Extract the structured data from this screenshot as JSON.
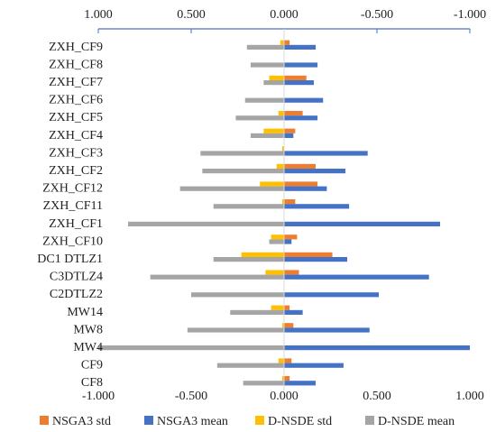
{
  "chart_data": {
    "type": "bar",
    "orientation": "horizontal",
    "categories": [
      "ZXH_CF9",
      "ZXH_CF8",
      "ZXH_CF7",
      "ZXH_CF6",
      "ZXH_CF5",
      "ZXH_CF4",
      "ZXH_CF3",
      "ZXH_CF2",
      "ZXH_CF12",
      "ZXH_CF11",
      "ZXH_CF1",
      "ZXH_CF10",
      "DC1 DTLZ1",
      "C3DTLZ4",
      "C2DTLZ2",
      "MW14",
      "MW8",
      "MW4",
      "CF9",
      "CF8"
    ],
    "series": [
      {
        "name": "NSGA3 std",
        "color": "#ED7D31",
        "values": [
          0.03,
          0.0,
          0.12,
          0.0,
          0.1,
          0.06,
          0.0,
          0.17,
          0.18,
          0.06,
          0.0,
          0.07,
          0.26,
          0.08,
          0.0,
          0.03,
          0.05,
          0.0,
          0.04,
          0.03
        ]
      },
      {
        "name": "NSGA3 mean",
        "color": "#4472C4",
        "values": [
          0.17,
          0.18,
          0.16,
          0.21,
          0.18,
          0.05,
          0.45,
          0.33,
          0.23,
          0.35,
          0.84,
          0.04,
          0.34,
          0.78,
          0.51,
          0.1,
          0.46,
          1.0,
          0.32,
          0.17
        ]
      },
      {
        "name": "D-NSDE std",
        "color": "#FFC000",
        "values": [
          -0.02,
          0.0,
          -0.08,
          0.0,
          -0.03,
          -0.11,
          -0.01,
          -0.04,
          -0.13,
          -0.01,
          0.0,
          -0.07,
          -0.23,
          -0.1,
          0.0,
          -0.07,
          -0.01,
          0.0,
          -0.03,
          -0.01
        ]
      },
      {
        "name": "D-NSDE mean",
        "color": "#A5A5A5",
        "values": [
          -0.2,
          -0.18,
          -0.11,
          -0.21,
          -0.26,
          -0.18,
          -0.45,
          -0.44,
          -0.56,
          -0.38,
          -0.84,
          -0.08,
          -0.38,
          -0.72,
          -0.5,
          -0.29,
          -0.52,
          -1.0,
          -0.36,
          -0.22
        ]
      }
    ],
    "xlim": [
      -1,
      1
    ],
    "bottom_ticks": [
      "-1.000",
      "-0.500",
      "0.000",
      "0.500",
      "1.000"
    ],
    "top_ticks": [
      "1.000",
      "0.500",
      "0.000",
      "-0.500",
      "-1.000"
    ],
    "title": "",
    "xlabel": "",
    "ylabel": "",
    "grid": false,
    "legend_position": "bottom"
  }
}
